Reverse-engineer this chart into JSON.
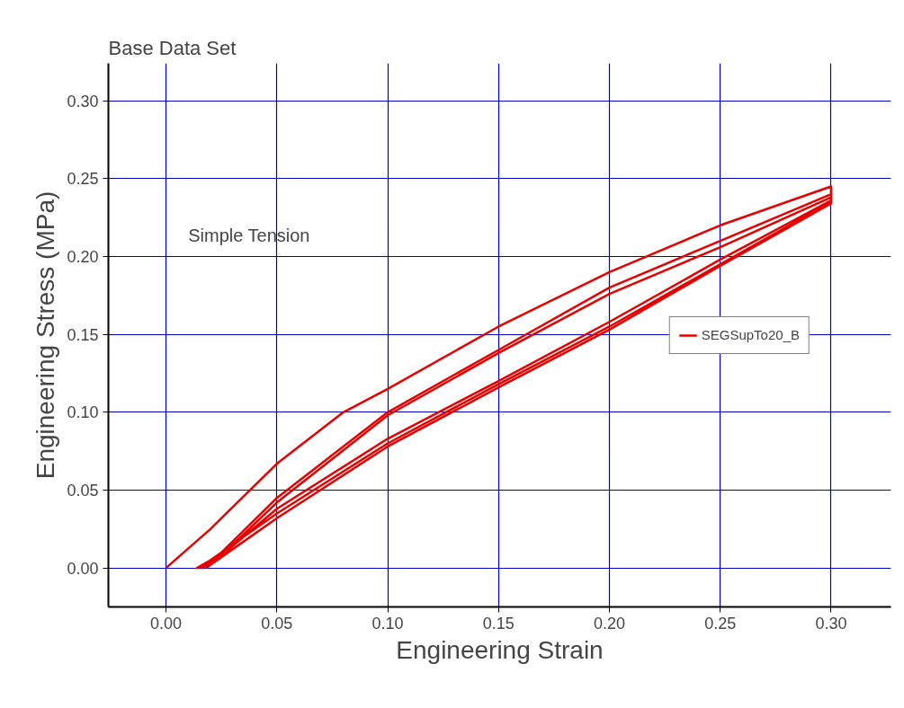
{
  "chart_data": {
    "type": "line",
    "title": "Base Data Set",
    "xlabel": "Engineering Strain",
    "ylabel": "Engineering Stress (MPa)",
    "annotations": [
      "Simple Tension"
    ],
    "xlim": [
      -0.026,
      0.327
    ],
    "ylim": [
      -0.025,
      0.324
    ],
    "xticks": [
      {
        "value": 0,
        "label": "0.00"
      },
      {
        "value": 0.05,
        "label": "0.05"
      },
      {
        "value": 0.1,
        "label": "0.10"
      },
      {
        "value": 0.15,
        "label": "0.15"
      },
      {
        "value": 0.2,
        "label": "0.20"
      },
      {
        "value": 0.25,
        "label": "0.25"
      },
      {
        "value": 0.3,
        "label": "0.30"
      }
    ],
    "yticks": [
      {
        "value": 0,
        "label": "0.00"
      },
      {
        "value": 0.05,
        "label": "0.05"
      },
      {
        "value": 0.1,
        "label": "0.10"
      },
      {
        "value": 0.15,
        "label": "0.15"
      },
      {
        "value": 0.2,
        "label": "0.20"
      },
      {
        "value": 0.25,
        "label": "0.25"
      },
      {
        "value": 0.3,
        "label": "0.30"
      }
    ],
    "grid": true,
    "legend": "right",
    "marker": "none",
    "line_style": "solid",
    "series": [
      {
        "name": "SEGSupTo20_B",
        "color": "#e60000",
        "x": [
          0,
          0.02,
          0.05,
          0.08,
          0.1,
          0.15,
          0.2,
          0.25,
          0.3,
          0.3,
          0.25,
          0.2,
          0.15,
          0.1,
          0.05,
          0.02,
          0.014,
          0.02,
          0.05,
          0.1,
          0.15,
          0.2,
          0.25,
          0.3,
          0.3,
          0.25,
          0.2,
          0.15,
          0.1,
          0.05,
          0.025,
          0.016,
          0.022,
          0.05,
          0.1,
          0.15,
          0.2,
          0.25,
          0.3,
          0.3,
          0.25,
          0.2,
          0.15,
          0.1,
          0.05,
          0.03,
          0.018
        ],
        "values": [
          0,
          0.025,
          0.067,
          0.1,
          0.115,
          0.155,
          0.19,
          0.22,
          0.245,
          0.235,
          0.195,
          0.155,
          0.118,
          0.08,
          0.035,
          0.005,
          0,
          0.003,
          0.045,
          0.1,
          0.14,
          0.18,
          0.21,
          0.24,
          0.236,
          0.198,
          0.158,
          0.12,
          0.083,
          0.038,
          0.008,
          0,
          0.004,
          0.042,
          0.098,
          0.138,
          0.176,
          0.206,
          0.238,
          0.234,
          0.194,
          0.153,
          0.116,
          0.078,
          0.032,
          0.012,
          0
        ]
      }
    ]
  }
}
